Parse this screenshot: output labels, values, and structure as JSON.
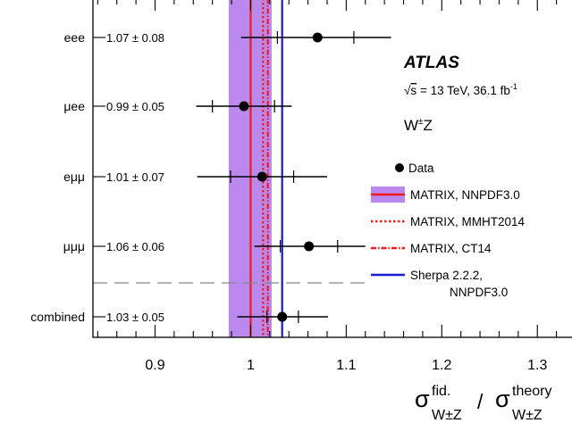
{
  "chart_data": {
    "type": "scatter",
    "xlim": [
      0.835,
      1.34
    ],
    "x_ticks": [
      {
        "value": 0.9,
        "label": "0.9"
      },
      {
        "value": 1.0,
        "label": "1"
      },
      {
        "value": 1.1,
        "label": "1.1"
      },
      {
        "value": 1.2,
        "label": "1.2"
      },
      {
        "value": 1.3,
        "label": "1.3"
      }
    ],
    "xlabel": {
      "sigma": "σ",
      "sup_num": "fid.",
      "sub_num": "W±Z",
      "slash": "/",
      "sup_den": "theory",
      "sub_den": "W±Z"
    },
    "categories": [
      "eee",
      "μee",
      "eμμ",
      "μμμ",
      "combined"
    ],
    "value_labels": [
      "1.07 ± 0.08",
      "0.99 ± 0.05",
      "1.01 ± 0.07",
      "1.06 ± 0.06",
      "1.03 ± 0.05"
    ],
    "points": [
      {
        "channel": "eee",
        "value": 1.07,
        "stat_lo": 1.028,
        "stat_hi": 1.108,
        "tot_lo": 0.99,
        "tot_hi": 1.147
      },
      {
        "channel": "μee",
        "value": 0.993,
        "stat_lo": 0.96,
        "stat_hi": 1.025,
        "tot_lo": 0.943,
        "tot_hi": 1.043
      },
      {
        "channel": "eμμ",
        "value": 1.012,
        "stat_lo": 0.979,
        "stat_hi": 1.045,
        "tot_lo": 0.944,
        "tot_hi": 1.08
      },
      {
        "channel": "μμμ",
        "value": 1.061,
        "stat_lo": 1.031,
        "stat_hi": 1.091,
        "tot_lo": 1.004,
        "tot_hi": 1.12
      },
      {
        "channel": "combined",
        "value": 1.033,
        "stat_lo": 1.017,
        "stat_hi": 1.05,
        "tot_lo": 0.986,
        "tot_hi": 1.081
      }
    ],
    "theory": [
      {
        "name": "MATRIX, NNPDF3.0",
        "value": 1.0,
        "band": [
          0.977,
          1.022
        ],
        "color": "#ee1c1c",
        "style": "solid"
      },
      {
        "name": "MATRIX, MMHT2014",
        "value": 1.013,
        "color": "#ee1c1c",
        "style": "dotted"
      },
      {
        "name": "MATRIX, CT14",
        "value": 1.018,
        "color": "#ee1c1c",
        "style": "dashdot"
      },
      {
        "name": "Sherpa 2.2.2,",
        "name2": "NNPDF3.0",
        "value": 1.033,
        "color": "#1a1ad6",
        "style": "solid"
      }
    ],
    "band_color": "#bb88ee",
    "legend": {
      "data": "Data",
      "position": "right"
    },
    "atlas": {
      "experiment": "ATLAS",
      "energy_prefix": "= 13 TeV, 36.1 fb",
      "energy_sup": "-1",
      "process": "W",
      "process_sup": "±",
      "process_tail": "Z"
    }
  }
}
